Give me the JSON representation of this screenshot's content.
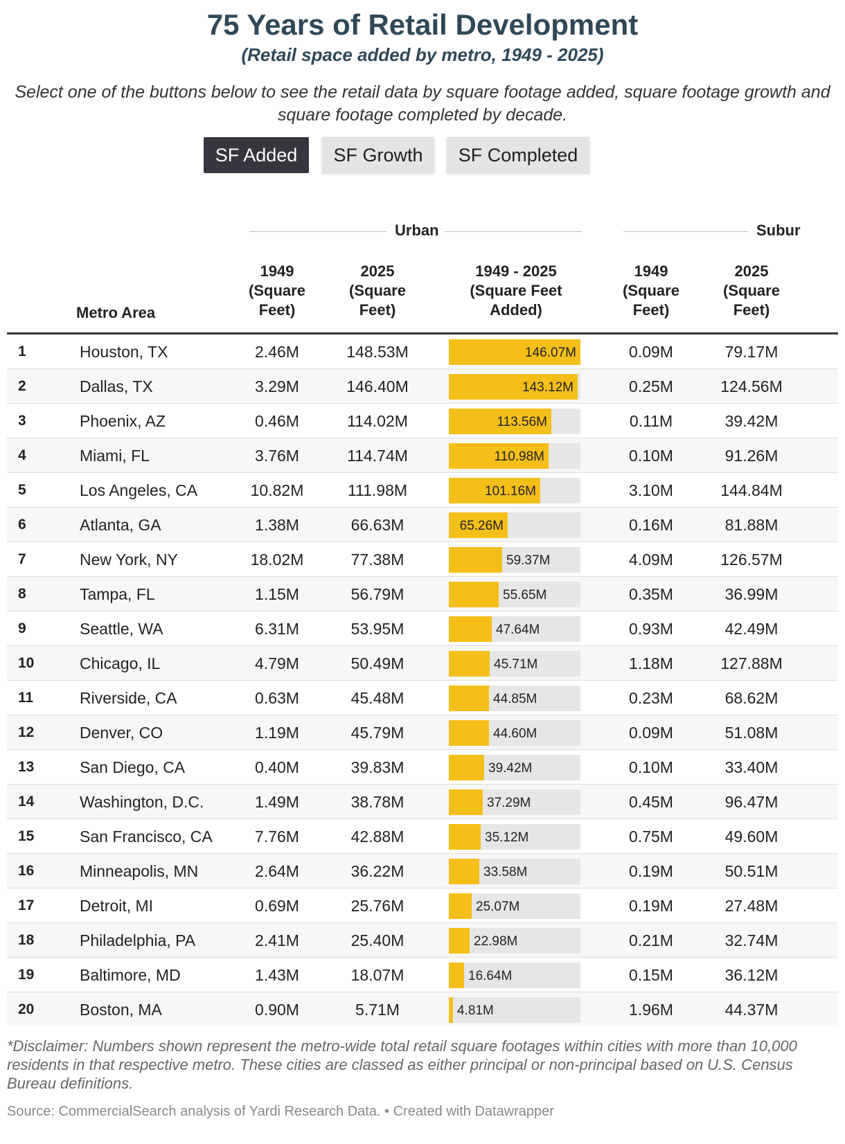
{
  "header": {
    "title": "75 Years of Retail Development",
    "subtitle": "(Retail space added by metro, 1949 - 2025)",
    "intro": "Select one of the buttons below to see the retail data by square footage added, square footage growth and square footage completed by decade."
  },
  "buttons": [
    {
      "label": "SF Added",
      "active": true
    },
    {
      "label": "SF Growth",
      "active": false
    },
    {
      "label": "SF Completed",
      "active": false
    }
  ],
  "groups": {
    "urban": "Urban",
    "suburban": "Subur"
  },
  "columns": {
    "metro": "Metro Area",
    "urban_1949": "1949 (Square Feet)",
    "urban_2025": "2025 (Square Feet)",
    "urban_added": "1949 - 2025 (Square Feet Added)",
    "sub_1949": "1949 (Square Feet)",
    "sub_2025": "2025 (Square Feet)"
  },
  "colors": {
    "bar": "#f5bf1a",
    "track": "#e6e6e6",
    "active_button": "#36363e",
    "title": "#2f4858"
  },
  "chart_data": {
    "type": "table",
    "bar_max": 146.07,
    "rows": [
      {
        "rank": "1",
        "metro": "Houston, TX",
        "urban_1949": "2.46M",
        "urban_2025": "148.53M",
        "added": 146.07,
        "added_label": "146.07M",
        "sub_1949": "0.09M",
        "sub_2025": "79.17M"
      },
      {
        "rank": "2",
        "metro": "Dallas, TX",
        "urban_1949": "3.29M",
        "urban_2025": "146.40M",
        "added": 143.12,
        "added_label": "143.12M",
        "sub_1949": "0.25M",
        "sub_2025": "124.56M"
      },
      {
        "rank": "3",
        "metro": "Phoenix, AZ",
        "urban_1949": "0.46M",
        "urban_2025": "114.02M",
        "added": 113.56,
        "added_label": "113.56M",
        "sub_1949": "0.11M",
        "sub_2025": "39.42M"
      },
      {
        "rank": "4",
        "metro": "Miami, FL",
        "urban_1949": "3.76M",
        "urban_2025": "114.74M",
        "added": 110.98,
        "added_label": "110.98M",
        "sub_1949": "0.10M",
        "sub_2025": "91.26M"
      },
      {
        "rank": "5",
        "metro": "Los Angeles, CA",
        "urban_1949": "10.82M",
        "urban_2025": "111.98M",
        "added": 101.16,
        "added_label": "101.16M",
        "sub_1949": "3.10M",
        "sub_2025": "144.84M"
      },
      {
        "rank": "6",
        "metro": "Atlanta, GA",
        "urban_1949": "1.38M",
        "urban_2025": "66.63M",
        "added": 65.26,
        "added_label": "65.26M",
        "sub_1949": "0.16M",
        "sub_2025": "81.88M"
      },
      {
        "rank": "7",
        "metro": "New York, NY",
        "urban_1949": "18.02M",
        "urban_2025": "77.38M",
        "added": 59.37,
        "added_label": "59.37M",
        "sub_1949": "4.09M",
        "sub_2025": "126.57M"
      },
      {
        "rank": "8",
        "metro": "Tampa, FL",
        "urban_1949": "1.15M",
        "urban_2025": "56.79M",
        "added": 55.65,
        "added_label": "55.65M",
        "sub_1949": "0.35M",
        "sub_2025": "36.99M"
      },
      {
        "rank": "9",
        "metro": "Seattle, WA",
        "urban_1949": "6.31M",
        "urban_2025": "53.95M",
        "added": 47.64,
        "added_label": "47.64M",
        "sub_1949": "0.93M",
        "sub_2025": "42.49M"
      },
      {
        "rank": "10",
        "metro": "Chicago, IL",
        "urban_1949": "4.79M",
        "urban_2025": "50.49M",
        "added": 45.71,
        "added_label": "45.71M",
        "sub_1949": "1.18M",
        "sub_2025": "127.88M"
      },
      {
        "rank": "11",
        "metro": "Riverside, CA",
        "urban_1949": "0.63M",
        "urban_2025": "45.48M",
        "added": 44.85,
        "added_label": "44.85M",
        "sub_1949": "0.23M",
        "sub_2025": "68.62M"
      },
      {
        "rank": "12",
        "metro": "Denver, CO",
        "urban_1949": "1.19M",
        "urban_2025": "45.79M",
        "added": 44.6,
        "added_label": "44.60M",
        "sub_1949": "0.09M",
        "sub_2025": "51.08M"
      },
      {
        "rank": "13",
        "metro": "San Diego, CA",
        "urban_1949": "0.40M",
        "urban_2025": "39.83M",
        "added": 39.42,
        "added_label": "39.42M",
        "sub_1949": "0.10M",
        "sub_2025": "33.40M"
      },
      {
        "rank": "14",
        "metro": "Washington, D.C.",
        "urban_1949": "1.49M",
        "urban_2025": "38.78M",
        "added": 37.29,
        "added_label": "37.29M",
        "sub_1949": "0.45M",
        "sub_2025": "96.47M"
      },
      {
        "rank": "15",
        "metro": "San Francisco, CA",
        "urban_1949": "7.76M",
        "urban_2025": "42.88M",
        "added": 35.12,
        "added_label": "35.12M",
        "sub_1949": "0.75M",
        "sub_2025": "49.60M"
      },
      {
        "rank": "16",
        "metro": "Minneapolis, MN",
        "urban_1949": "2.64M",
        "urban_2025": "36.22M",
        "added": 33.58,
        "added_label": "33.58M",
        "sub_1949": "0.19M",
        "sub_2025": "50.51M"
      },
      {
        "rank": "17",
        "metro": "Detroit, MI",
        "urban_1949": "0.69M",
        "urban_2025": "25.76M",
        "added": 25.07,
        "added_label": "25.07M",
        "sub_1949": "0.19M",
        "sub_2025": "27.48M"
      },
      {
        "rank": "18",
        "metro": "Philadelphia, PA",
        "urban_1949": "2.41M",
        "urban_2025": "25.40M",
        "added": 22.98,
        "added_label": "22.98M",
        "sub_1949": "0.21M",
        "sub_2025": "32.74M"
      },
      {
        "rank": "19",
        "metro": "Baltimore, MD",
        "urban_1949": "1.43M",
        "urban_2025": "18.07M",
        "added": 16.64,
        "added_label": "16.64M",
        "sub_1949": "0.15M",
        "sub_2025": "36.12M"
      },
      {
        "rank": "20",
        "metro": "Boston, MA",
        "urban_1949": "0.90M",
        "urban_2025": "5.71M",
        "added": 4.81,
        "added_label": "4.81M",
        "sub_1949": "1.96M",
        "sub_2025": "44.37M"
      }
    ]
  },
  "footer": {
    "disclaimer": "*Disclaimer: Numbers shown represent the metro-wide total retail square footages within cities with more than 10,000 residents in that respective metro. These cities are classed as either principal or non-principal based on U.S. Census Bureau definitions.",
    "source": "Source: CommercialSearch analysis of Yardi Research Data. • Created with Datawrapper"
  }
}
